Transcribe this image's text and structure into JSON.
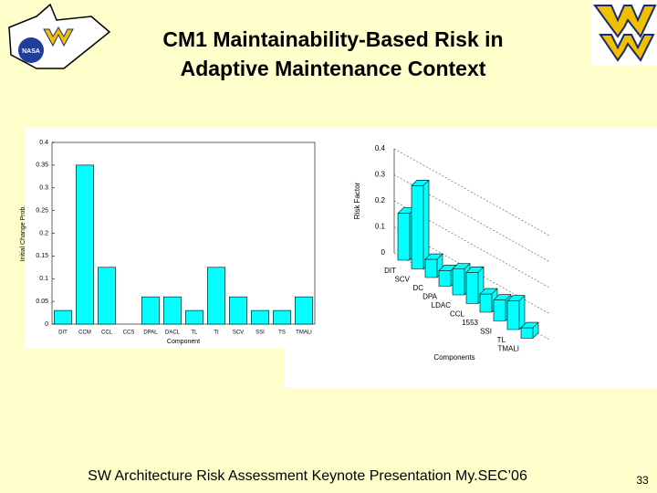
{
  "slide": {
    "title_lines": [
      "CM1 Maintainability-Based Risk in",
      "Adaptive Maintenance Context"
    ],
    "footer": "SW Architecture Risk Assessment Keynote Presentation My.SEC’06",
    "page_number": "33",
    "logo_text": "NASA"
  },
  "chart_data": [
    {
      "type": "bar",
      "ylabel": "Initial Change Prob.",
      "xlabel": "Component",
      "categories": [
        "DIT",
        "CCM",
        "CCL",
        "CCS",
        "DPAL",
        "DACL",
        "TL",
        "TI",
        "SCV",
        "SSI",
        "TS",
        "TMALI"
      ],
      "values": [
        0.03,
        0.35,
        0.125,
        0,
        0.06,
        0.06,
        0.03,
        0.125,
        0.06,
        0.03,
        0.03,
        0.06
      ],
      "color": "#00ffff",
      "ylim": [
        0,
        0.4
      ],
      "yticks": [
        0,
        0.05,
        0.1,
        0.15,
        0.2,
        0.25,
        0.3,
        0.35,
        0.4
      ]
    },
    {
      "type": "bar3d",
      "ylabel": "Risk Factor",
      "xlabel": "Components",
      "categories": [
        "DIT",
        "SCV",
        "DC",
        "DPA",
        "LDAC",
        "CCL",
        "1553",
        "SSI",
        "TL",
        "TMALI"
      ],
      "values": [
        0.18,
        0.32,
        0.07,
        0.06,
        0.1,
        0.12,
        0.07,
        0.08,
        0.11,
        0.04
      ],
      "color": "#00ffff",
      "ylim": [
        0,
        0.4
      ],
      "yticks": [
        0,
        0.1,
        0.2,
        0.3,
        0.4
      ]
    }
  ]
}
